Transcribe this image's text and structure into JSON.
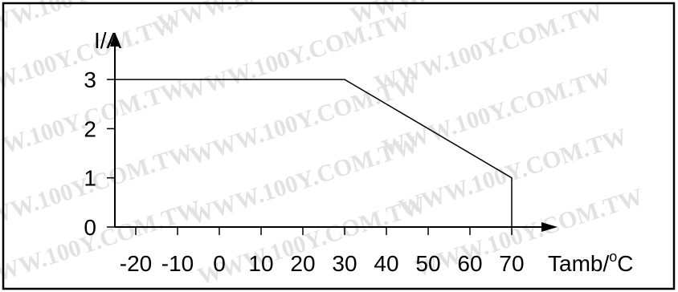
{
  "chart_data": {
    "type": "line",
    "title": "",
    "xlabel": "Tamb/",
    "xlabel_superscript": "o",
    "xlabel_unit": "C",
    "ylabel": "I/A",
    "x_ticks": [
      -20,
      -10,
      0,
      10,
      20,
      30,
      40,
      50,
      60,
      70
    ],
    "y_ticks": [
      0,
      1,
      2,
      3
    ],
    "xlim": [
      -25,
      80
    ],
    "ylim": [
      0,
      3.5
    ],
    "grid": false,
    "series": [
      {
        "x": [
          -25,
          30,
          70,
          70
        ],
        "y": [
          3,
          3,
          1,
          0
        ]
      }
    ],
    "colors": {
      "line": "#000000",
      "axis": "#000000",
      "background": "#ffffff"
    }
  },
  "watermark": {
    "text": "WWW.100Y.COM.TW",
    "color": "#e2e2e2"
  }
}
